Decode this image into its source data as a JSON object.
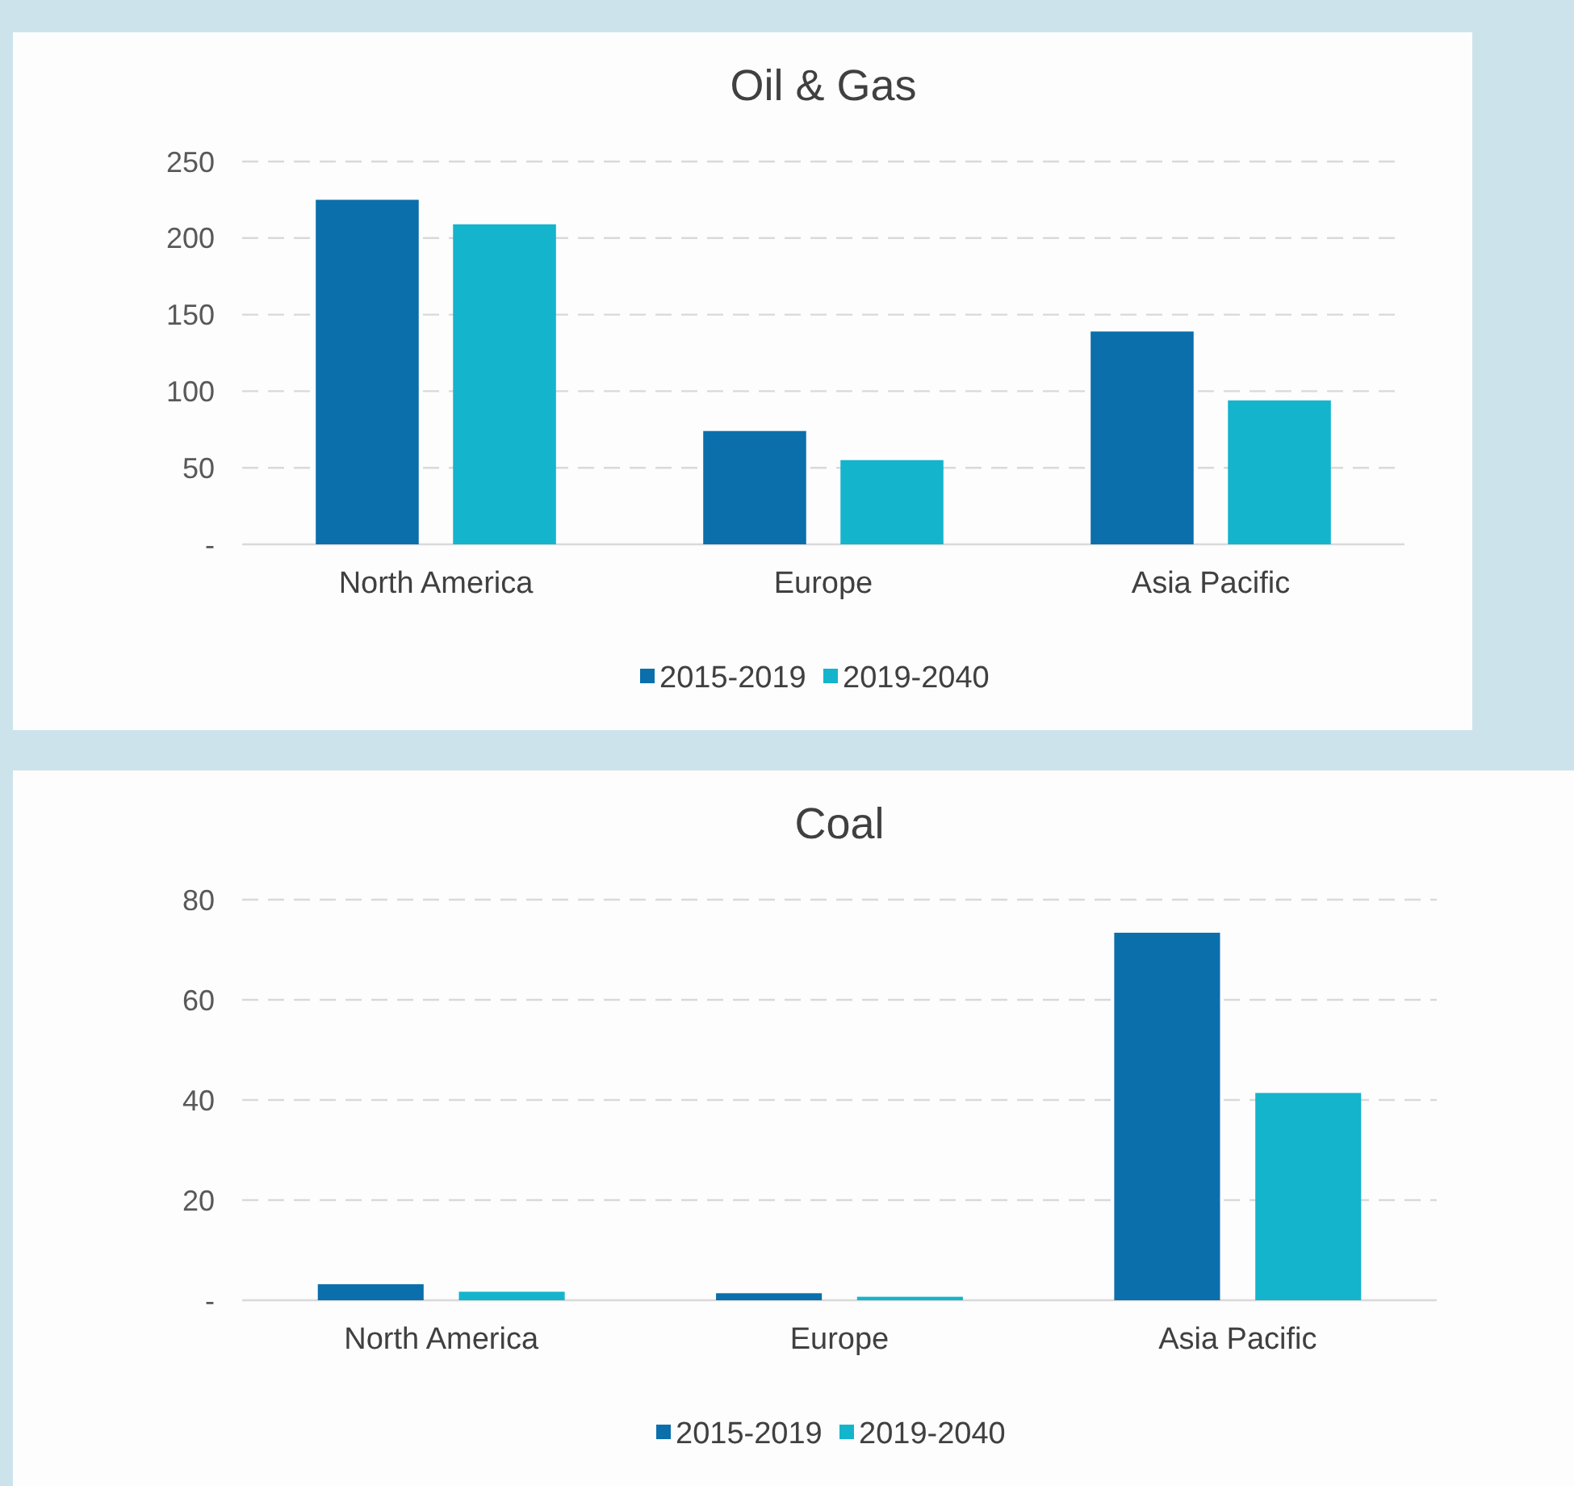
{
  "chart_data": [
    {
      "type": "bar",
      "title": "Oil & Gas",
      "categories": [
        "North America",
        "Europe",
        "Asia Pacific"
      ],
      "series": [
        {
          "name": "2015-2019",
          "color": "#0a6fab",
          "values": [
            225,
            74,
            139
          ]
        },
        {
          "name": "2019-2040",
          "color": "#14b4cc",
          "values": [
            209,
            55,
            94
          ]
        }
      ],
      "ylim": [
        0,
        250
      ],
      "yticks": [
        {
          "value": 0,
          "label": "-"
        },
        50,
        100,
        150,
        200,
        250
      ],
      "grid": "y",
      "legend": "bottom"
    },
    {
      "type": "bar",
      "title": "Coal",
      "categories": [
        "North America",
        "Europe",
        "Asia Pacific"
      ],
      "series": [
        {
          "name": "2015-2019",
          "color": "#0a6fab",
          "values": [
            3.2,
            1.4,
            73.4
          ]
        },
        {
          "name": "2019-2040",
          "color": "#14b4cc",
          "values": [
            1.7,
            0.7,
            41.4
          ]
        }
      ],
      "ylim": [
        0,
        80
      ],
      "yticks": [
        {
          "value": 0,
          "label": "-"
        },
        20,
        40,
        60,
        80
      ],
      "grid": "y",
      "legend": "bottom"
    }
  ]
}
